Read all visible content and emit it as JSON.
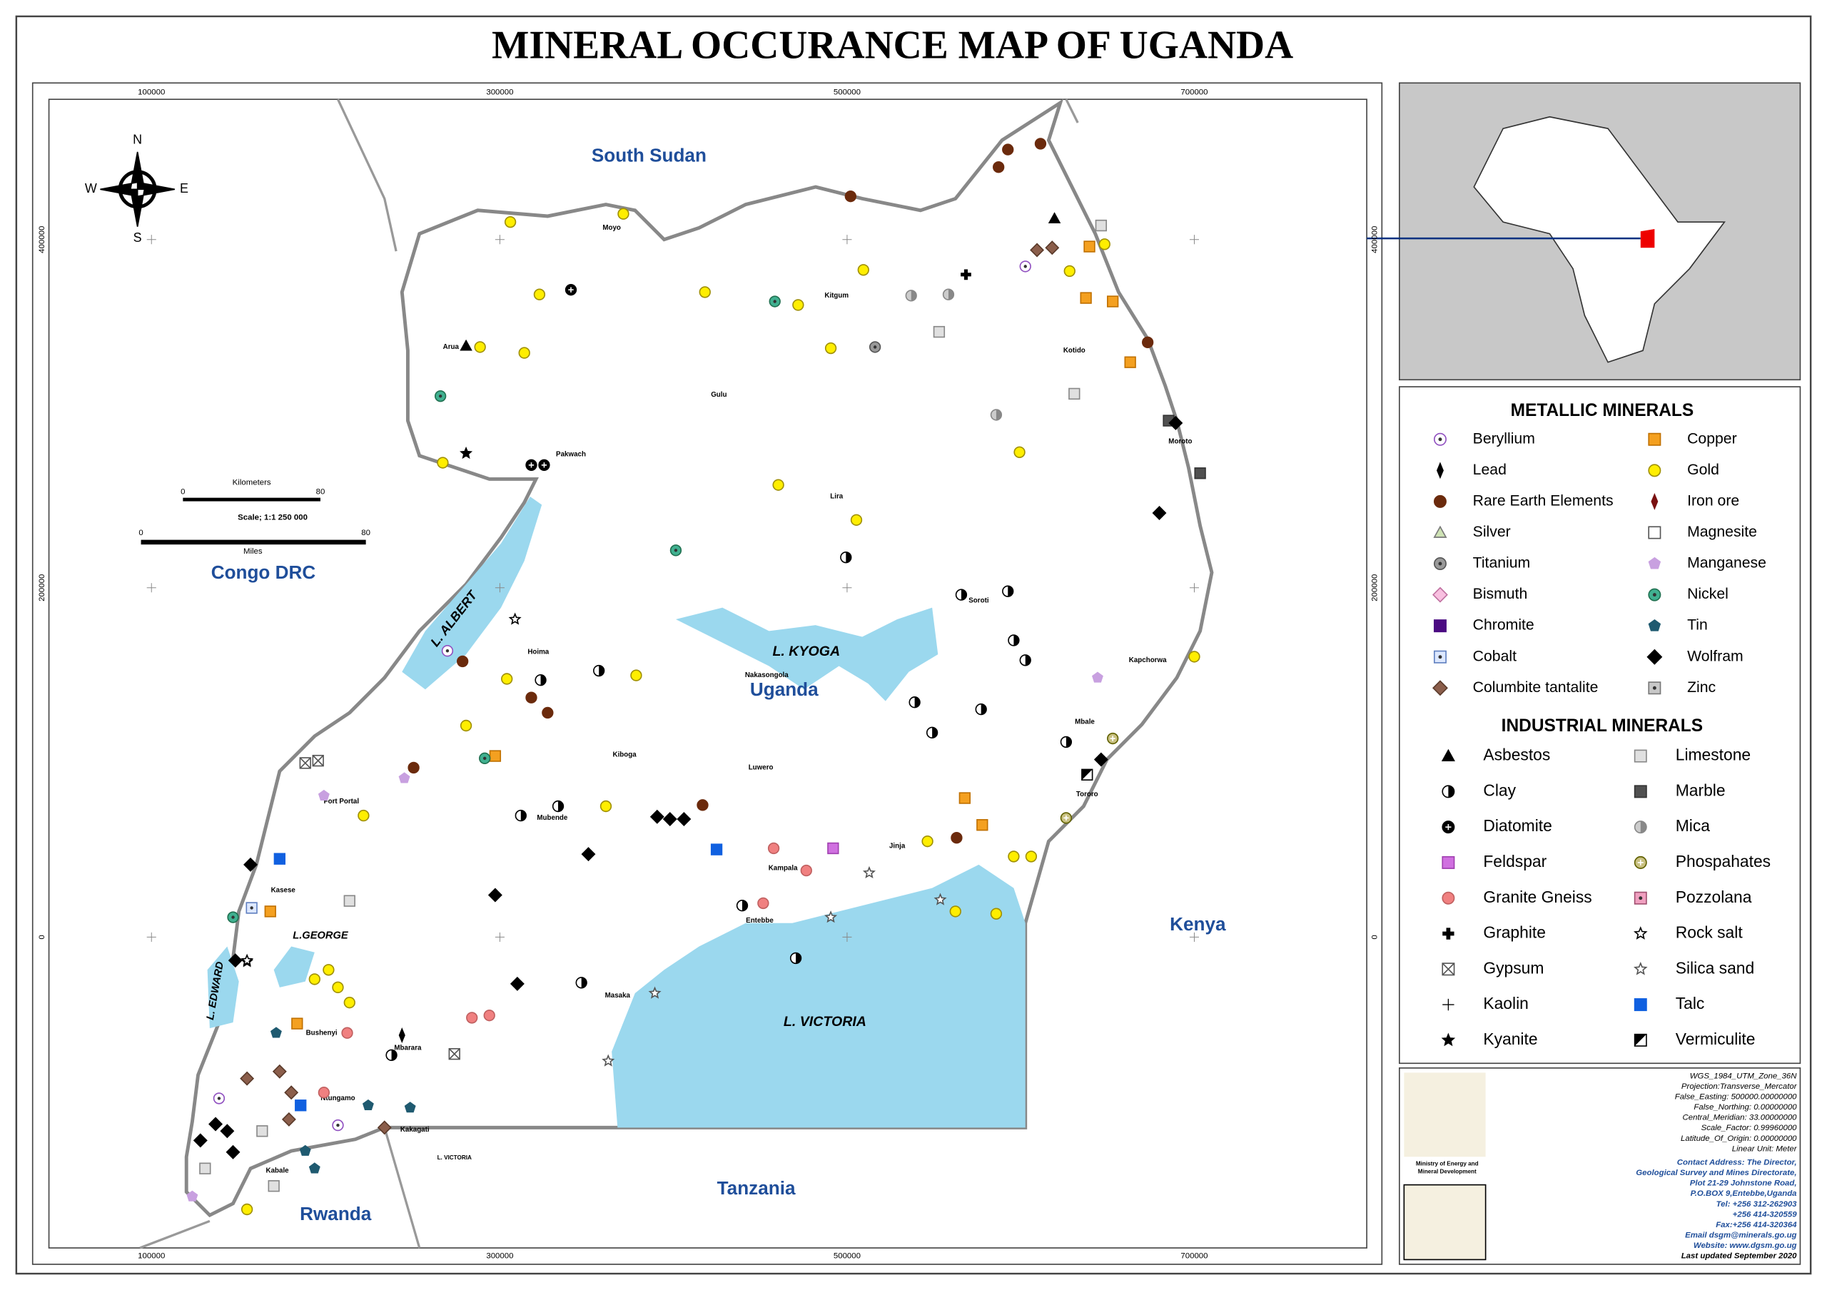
{
  "title": "MINERAL OCCURANCE MAP OF UGANDA",
  "map": {
    "countries": [
      "South Sudan",
      "Congo DRC",
      "Kenya",
      "Tanzania",
      "Rwanda",
      "Uganda"
    ],
    "lakes": [
      "L. ALBERT",
      "L. KYOGA",
      "L. VICTORIA",
      "L.GEORGE",
      "L. EDWARD"
    ],
    "towns": [
      "Moyo",
      "Kitgum",
      "Arua",
      "Kotido",
      "Gulu",
      "Pakwach",
      "Moroto",
      "Lira",
      "Soroti",
      "Hoima",
      "Kapchorwa",
      "Nakasongola",
      "Kiboga",
      "Mbale",
      "Luwero",
      "Fort Portal",
      "Tororo",
      "Mubende",
      "Jinja",
      "Kampala",
      "Kasese",
      "Entebbe",
      "Masaka",
      "Bushenyi",
      "Mbarara",
      "Ntungamo",
      "Kabale",
      "Kakagati",
      "L. VICTORIA"
    ],
    "grid_x": [
      "100000",
      "300000",
      "500000",
      "700000"
    ],
    "grid_y": [
      "400000",
      "200000",
      "0"
    ]
  },
  "scale_bar": {
    "km_label": "Kilometers",
    "km_ticks": [
      "0",
      "80"
    ],
    "scale": "Scale; 1:1 250 000",
    "miles_ticks": [
      "0",
      "80"
    ],
    "miles_label": "Miles"
  },
  "compass": [
    "N",
    "E",
    "S",
    "W"
  ],
  "legend": {
    "metallic_title": "METALLIC MINERALS",
    "metallic": [
      "Beryllium",
      "Lead",
      "Rare Earth Elements",
      "Silver",
      "Titanium",
      "Bismuth",
      "Chromite",
      "Cobalt",
      "Columbite tantalite",
      "Copper",
      "Gold",
      "Iron ore",
      "Magnesite",
      "Manganese",
      "Nickel",
      "Tin",
      "Wolfram",
      "Zinc"
    ],
    "industrial_title": "INDUSTRIAL MINERALS",
    "industrial": [
      "Asbestos",
      "Clay",
      "Diatomite",
      "Feldspar",
      "Granite Gneiss",
      "Graphite",
      "Gypsum",
      "Kaolin",
      "Kyanite",
      "Limestone",
      "Marble",
      "Mica",
      "Phospahates",
      "Pozzolana",
      "Rock salt",
      "Silica sand",
      "Talc",
      "Vermiculite"
    ]
  },
  "info": {
    "projection": [
      "WGS_1984_UTM_Zone_36N",
      "Projection:Transverse_Mercator",
      "False_Easting: 500000.00000000",
      "False_Northing: 0.00000000",
      "Central_Meridian: 33.00000000",
      "Scale_Factor: 0.99960000",
      "Latitude_Of_Origin: 0.00000000",
      "Linear Unit: Meter"
    ],
    "ministry": [
      "Ministry of Energy and",
      "Mineral Development"
    ],
    "contact": [
      "Contact Address: The Director,",
      "Geological Survey and Mines Directorate,",
      "Plot 21-29 Johnstone Road,",
      "P.O.BOX 9,Entebbe,Uganda",
      "Tel: +256 312-262903",
      "+256 414-320559",
      "Fax:+256 414-320364",
      "Email dsgm@minerals.go.ug",
      "Website: www.dgsm.go.ug",
      "Last updated September 2020"
    ]
  }
}
